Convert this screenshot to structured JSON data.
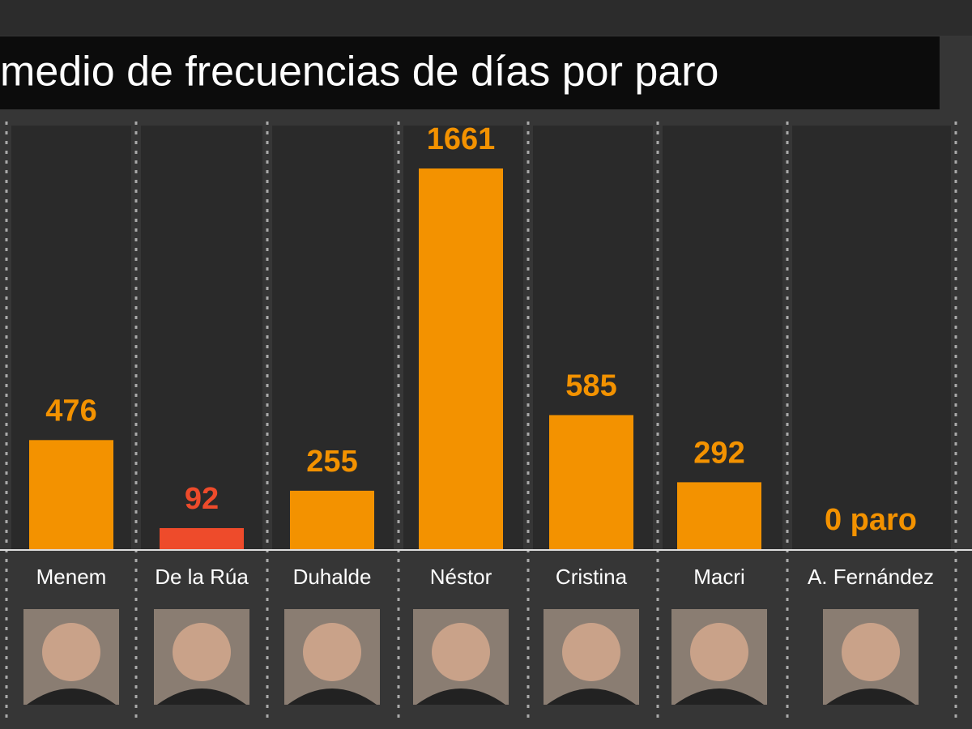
{
  "chart_data": {
    "type": "bar",
    "title": "medio de frecuencias de días por paro",
    "categories": [
      "Menem",
      "De la Rúa",
      "Duhalde",
      "Néstor",
      "Cristina",
      "Macri",
      "A. Fernández"
    ],
    "values": [
      476,
      92,
      255,
      1661,
      585,
      292,
      0
    ],
    "value_labels": [
      "476",
      "92",
      "255",
      "1661",
      "585",
      "292",
      "0 paro"
    ],
    "colors": [
      "#f39200",
      "#ee4b2b",
      "#f39200",
      "#f39200",
      "#f39200",
      "#f39200",
      "#f39200"
    ]
  }
}
